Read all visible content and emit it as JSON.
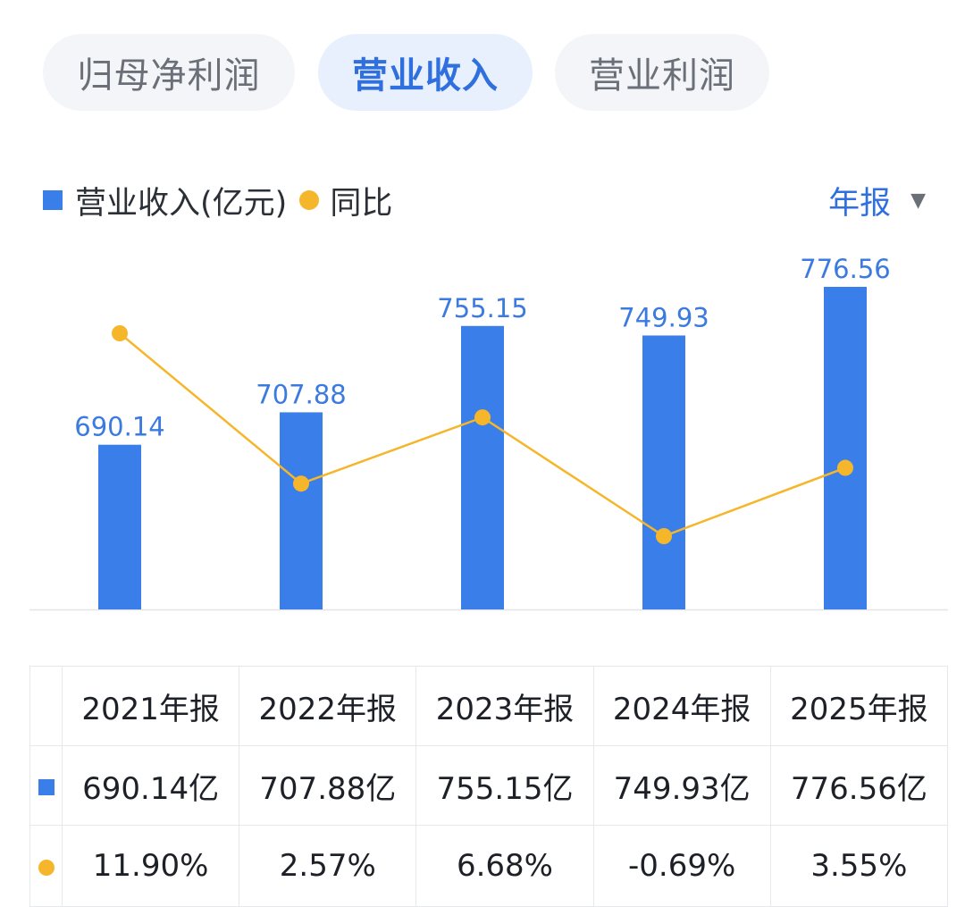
{
  "tabs": [
    "归母净利润",
    "营业收入",
    "营业利润"
  ],
  "active_tab": 1,
  "legend": {
    "bar_label": "营业收入(亿元)",
    "line_label": "同比"
  },
  "period": {
    "label": "年报",
    "caret": "▼"
  },
  "colors": {
    "bar": "#3a7eea",
    "line": "#f6b62b",
    "value_label": "#3b7adf",
    "positive": "#e2463f",
    "negative": "#1f9d5c"
  },
  "chart_data": {
    "type": "bar",
    "title": "营业收入",
    "categories": [
      "2021年报",
      "2022年报",
      "2023年报",
      "2024年报",
      "2025年报"
    ],
    "series": [
      {
        "name": "营业收入(亿元)",
        "type": "bar",
        "values": [
          690.14,
          707.88,
          755.15,
          749.93,
          776.56
        ],
        "labels": [
          "690.14",
          "707.88",
          "755.15",
          "749.93",
          "776.56"
        ]
      },
      {
        "name": "同比",
        "type": "line",
        "values": [
          11.9,
          2.57,
          6.68,
          -0.69,
          3.55
        ]
      }
    ],
    "ylim": [
      0,
      776.56
    ],
    "grid": false,
    "legend_position": "top-left"
  },
  "table": {
    "years": [
      "2021年报",
      "2022年报",
      "2023年报",
      "2024年报",
      "2025年报"
    ],
    "revenue": [
      "690.14亿",
      "707.88亿",
      "755.15亿",
      "749.93亿",
      "776.56亿"
    ],
    "yoy": [
      "11.90%",
      "2.57%",
      "6.68%",
      "-0.69%",
      "3.55%"
    ]
  }
}
